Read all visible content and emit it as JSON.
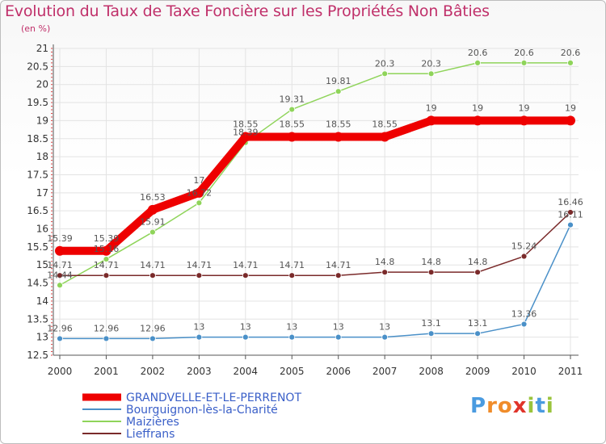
{
  "colors": {
    "title": "#c0306a",
    "grid": "#e3e3e3",
    "axis": "#555555",
    "legend_text": "#3a5fc8"
  },
  "logo": {
    "letters": [
      "P",
      "r",
      "o",
      "x",
      "i",
      "t",
      "i"
    ],
    "letter_colors": [
      "#4a9be0",
      "#f08c2a",
      "#f08c2a",
      "#e0342a",
      "#9ac43c",
      "#4a9be0",
      "#9ac43c"
    ]
  },
  "chart_data": {
    "type": "line",
    "title": "Evolution du Taux de Taxe Foncière sur les Propriétés Non Bâties",
    "subtitle": "(en %)",
    "x": [
      "2000",
      "2001",
      "2002",
      "2003",
      "2004",
      "2005",
      "2006",
      "2007",
      "2008",
      "2009",
      "2010",
      "2011"
    ],
    "ylim": [
      12.5,
      21
    ],
    "yticks": [
      "12.5",
      "13",
      "13.5",
      "14",
      "14.5",
      "15",
      "15.5",
      "16",
      "16.5",
      "17",
      "17.5",
      "18",
      "18.5",
      "19",
      "19.5",
      "20",
      "20.5",
      "21"
    ],
    "grid": true,
    "legend_position": "bottom-left",
    "series": [
      {
        "name": "GRANDVELLE-ET-LE-PERRENOT",
        "color": "#ee0000",
        "thick": true,
        "values": [
          15.39,
          15.39,
          16.53,
          17,
          18.55,
          18.55,
          18.55,
          18.55,
          19,
          19,
          19,
          19
        ],
        "labels": [
          "15.39",
          "15.39",
          "16.53",
          "17",
          "18.55",
          "18.55",
          "18.55",
          "18.55",
          "19",
          "19",
          "19",
          "19"
        ]
      },
      {
        "name": "Bourguignon-lès-la-Charité",
        "color": "#4a90c8",
        "thick": false,
        "values": [
          12.96,
          12.96,
          12.96,
          13,
          13,
          13,
          13,
          13,
          13.1,
          13.1,
          13.36,
          16.11
        ],
        "labels": [
          "12.96",
          "12.96",
          "12.96",
          "13",
          "13",
          "13",
          "13",
          "13",
          "13.1",
          "13.1",
          "13.36",
          "16.11"
        ]
      },
      {
        "name": "Maizières",
        "color": "#8fd45a",
        "thick": false,
        "values": [
          14.44,
          15.16,
          15.91,
          16.72,
          18.39,
          19.31,
          19.81,
          20.3,
          20.3,
          20.6,
          20.6,
          20.6
        ],
        "labels": [
          "14.44",
          "15.16",
          "15.91",
          "16.72",
          "18.39",
          "19.31",
          "19.81",
          "20.3",
          "20.3",
          "20.6",
          "20.6",
          "20.6"
        ]
      },
      {
        "name": "Lieffrans",
        "color": "#7a2a2a",
        "thick": false,
        "values": [
          14.71,
          14.71,
          14.71,
          14.71,
          14.71,
          14.71,
          14.71,
          14.8,
          14.8,
          14.8,
          15.24,
          16.46
        ],
        "labels": [
          "14.71",
          "14.71",
          "14.71",
          "14.71",
          "14.71",
          "14.71",
          "14.71",
          "14.8",
          "14.8",
          "14.8",
          "15.24",
          "16.46"
        ]
      }
    ]
  }
}
